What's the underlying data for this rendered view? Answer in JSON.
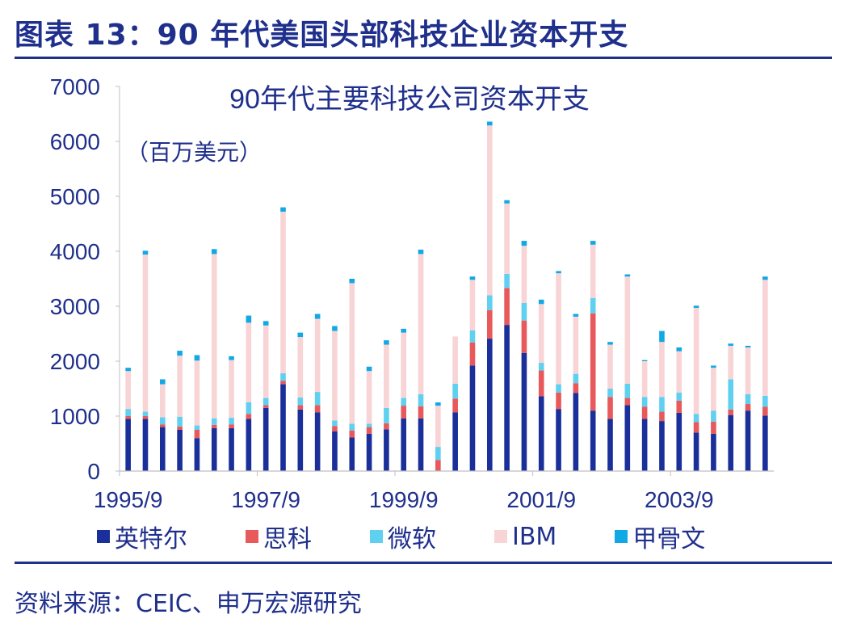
{
  "figure": {
    "title": "图表 13：90 年代美国头部科技企业资本开支",
    "source": "资料来源：CEIC、申万宏源研究"
  },
  "chart_data": {
    "type": "bar",
    "stacked": true,
    "title": "90年代主要科技公司资本开支",
    "unit_label": "（百万美元）",
    "ylim": [
      0,
      7000
    ],
    "yticks": [
      "0",
      "1000",
      "2000",
      "3000",
      "4000",
      "5000",
      "6000",
      "7000"
    ],
    "xtick_labels": [
      "1995/9",
      "1997/9",
      "1999/9",
      "2001/9",
      "2003/9"
    ],
    "legend_position": "bottom",
    "series": [
      {
        "name": "英特尔",
        "color": "#1a2f9a",
        "values": [
          950,
          950,
          800,
          750,
          600,
          780,
          780,
          950,
          1150,
          1580,
          1120,
          1070,
          720,
          610,
          680,
          760,
          960,
          960,
          0,
          1070,
          1920,
          2410,
          2660,
          2150,
          1360,
          1130,
          1420,
          1100,
          950,
          1200,
          950,
          910,
          1060,
          700,
          680,
          1020,
          1100,
          1010
        ]
      },
      {
        "name": "思科",
        "color": "#e8595b",
        "values": [
          50,
          50,
          50,
          60,
          150,
          60,
          70,
          90,
          50,
          60,
          80,
          130,
          100,
          130,
          120,
          110,
          230,
          220,
          200,
          250,
          420,
          520,
          670,
          590,
          470,
          300,
          180,
          1770,
          400,
          130,
          220,
          170,
          220,
          190,
          220,
          100,
          120,
          160
        ]
      },
      {
        "name": "微软",
        "color": "#5fd0f0",
        "values": [
          130,
          80,
          130,
          180,
          80,
          120,
          120,
          210,
          130,
          140,
          140,
          240,
          100,
          120,
          60,
          280,
          140,
          220,
          240,
          270,
          220,
          270,
          260,
          320,
          140,
          150,
          170,
          280,
          150,
          260,
          180,
          270,
          150,
          150,
          200,
          550,
          180,
          200
        ]
      },
      {
        "name": "IBM",
        "color": "#f8d4d6",
        "values": [
          690,
          2860,
          600,
          1110,
          1180,
          2990,
          1050,
          1450,
          1320,
          2940,
          1100,
          1330,
          1630,
          2560,
          960,
          1150,
          1190,
          2550,
          750,
          860,
          920,
          3090,
          1280,
          1040,
          1070,
          2020,
          1040,
          970,
          800,
          1950,
          650,
          1000,
          750,
          1930,
          780,
          610,
          850,
          2110
        ]
      },
      {
        "name": "甲骨文",
        "color": "#10a9e6",
        "values": [
          60,
          70,
          90,
          90,
          100,
          90,
          70,
          130,
          80,
          80,
          80,
          90,
          90,
          80,
          80,
          80,
          70,
          80,
          60,
          0,
          60,
          70,
          60,
          90,
          80,
          40,
          50,
          70,
          50,
          40,
          20,
          200,
          70,
          40,
          40,
          40,
          30,
          60
        ]
      }
    ]
  }
}
